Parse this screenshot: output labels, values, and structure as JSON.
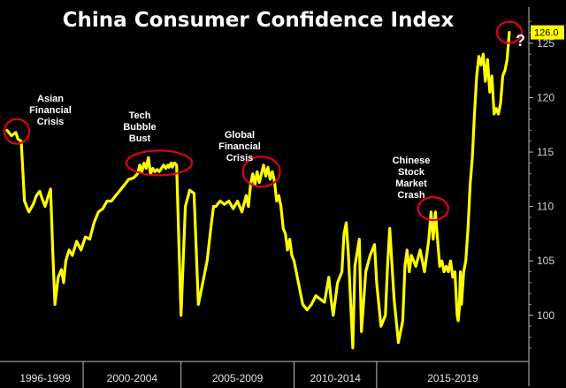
{
  "chart_data": {
    "type": "line",
    "title": "China Consumer Confidence Index",
    "xlabel": "",
    "ylabel": "",
    "ylim": [
      96,
      128
    ],
    "y_ticks": [
      100,
      105,
      110,
      115,
      120,
      125
    ],
    "x_range": [
      1996.0,
      2020.0
    ],
    "x_period_labels": [
      "1996-1999",
      "2000-2004",
      "2005-2009",
      "2010-2014",
      "2015-2019"
    ],
    "period_bounds": [
      1996.0,
      1999.5,
      2004.0,
      2009.2,
      2013.0,
      2020.0
    ],
    "last_value_label": "126.0",
    "question_mark": "?",
    "series": [
      {
        "name": "China Consumer Confidence Index",
        "color": "#ffff00",
        "x": [
          1996.0,
          1996.2,
          1996.4,
          1996.5,
          1996.65,
          1996.8,
          1997.0,
          1997.2,
          1997.35,
          1997.5,
          1997.6,
          1997.75,
          1997.9,
          1998.0,
          1998.1,
          1998.2,
          1998.35,
          1998.5,
          1998.6,
          1998.7,
          1998.85,
          1999.0,
          1999.2,
          1999.4,
          1999.6,
          1999.8,
          2000.0,
          2000.2,
          2000.4,
          2000.6,
          2000.8,
          2001.0,
          2001.2,
          2001.4,
          2001.6,
          2001.8,
          2002.0,
          2002.1,
          2002.2,
          2002.3,
          2002.4,
          2002.5,
          2002.6,
          2002.7,
          2002.8,
          2002.9,
          2003.0,
          2003.1,
          2003.2,
          2003.3,
          2003.4,
          2003.45,
          2003.5,
          2003.55,
          2003.6,
          2003.7,
          2003.8,
          2004.0,
          2004.2,
          2004.4,
          2004.6,
          2004.8,
          2005.0,
          2005.2,
          2005.4,
          2005.5,
          2005.6,
          2005.8,
          2006.0,
          2006.2,
          2006.4,
          2006.6,
          2006.8,
          2007.0,
          2007.1,
          2007.2,
          2007.3,
          2007.4,
          2007.5,
          2007.6,
          2007.7,
          2007.8,
          2007.9,
          2008.0,
          2008.1,
          2008.2,
          2008.3,
          2008.4,
          2008.5,
          2008.6,
          2008.7,
          2008.8,
          2008.9,
          2009.0,
          2009.1,
          2009.2,
          2009.4,
          2009.6,
          2009.8,
          2010.0,
          2010.2,
          2010.4,
          2010.6,
          2010.8,
          2010.9,
          2011.0,
          2011.2,
          2011.4,
          2011.5,
          2011.6,
          2011.7,
          2011.9,
          2012.0,
          2012.2,
          2012.3,
          2012.5,
          2012.7,
          2012.9,
          2013.0,
          2013.2,
          2013.4,
          2013.5,
          2013.6,
          2013.8,
          2014.0,
          2014.2,
          2014.3,
          2014.4,
          2014.5,
          2014.6,
          2014.8,
          2015.0,
          2015.2,
          2015.4,
          2015.5,
          2015.6,
          2015.7,
          2015.8,
          2015.9,
          2016.0,
          2016.1,
          2016.2,
          2016.3,
          2016.4,
          2016.5,
          2016.6,
          2016.7,
          2016.75,
          2016.8,
          2016.85,
          2016.9,
          2017.0,
          2017.1,
          2017.2,
          2017.3,
          2017.4,
          2017.5,
          2017.6,
          2017.7,
          2017.8,
          2017.9,
          2018.0,
          2018.1,
          2018.2,
          2018.3,
          2018.4,
          2018.5,
          2018.6,
          2018.7,
          2018.8,
          2018.9,
          2019.0,
          2019.1
        ],
        "values": [
          117.0,
          116.5,
          116.8,
          116.2,
          116.0,
          110.5,
          109.5,
          110.2,
          111.0,
          111.4,
          110.8,
          110.0,
          111.0,
          111.6,
          106.0,
          101.0,
          103.5,
          104.2,
          103.0,
          105.0,
          106.0,
          105.5,
          106.8,
          106.0,
          107.2,
          107.0,
          108.5,
          109.5,
          109.8,
          110.5,
          110.5,
          111.0,
          111.5,
          112.0,
          112.5,
          112.6,
          113.0,
          113.8,
          113.2,
          114.0,
          113.5,
          114.5,
          113.0,
          113.5,
          113.2,
          113.4,
          113.2,
          113.5,
          113.8,
          113.5,
          113.8,
          113.6,
          113.8,
          114.0,
          113.6,
          114.0,
          113.8,
          100.0,
          110.0,
          111.5,
          111.2,
          101.0,
          103.0,
          105.0,
          108.5,
          110.0,
          110.0,
          110.5,
          110.2,
          110.5,
          109.8,
          110.5,
          109.5,
          111.0,
          110.0,
          112.0,
          113.0,
          112.0,
          113.2,
          112.2,
          113.0,
          113.8,
          112.8,
          113.6,
          112.5,
          113.2,
          112.3,
          110.5,
          111.0,
          110.0,
          108.0,
          107.5,
          106.0,
          107.0,
          105.5,
          105.0,
          103.0,
          101.0,
          100.5,
          101.0,
          101.8,
          101.5,
          101.2,
          103.5,
          101.5,
          100.0,
          103.0,
          104.0,
          107.5,
          108.5,
          105.5,
          97.0,
          104.5,
          107.0,
          98.5,
          104.0,
          105.5,
          106.5,
          103.0,
          99.0,
          100.0,
          104.5,
          108.0,
          101.5,
          97.5,
          99.5,
          104.5,
          106.0,
          104.0,
          105.5,
          104.5,
          106.0,
          104.0,
          107.0,
          109.5,
          107.0,
          109.5,
          107.0,
          104.5,
          105.0,
          104.0,
          104.5,
          104.0,
          105.0,
          103.5,
          104.0,
          100.0,
          99.5,
          100.5,
          104.0,
          101.0,
          104.0,
          105.0,
          108.0,
          112.0,
          114.5,
          118.5,
          122.0,
          123.8,
          123.0,
          124.0,
          121.5,
          123.5,
          120.5,
          122.0,
          118.5,
          119.0,
          118.5,
          119.5,
          122.0,
          122.5,
          123.5,
          126.0
        ]
      }
    ],
    "annotations": [
      {
        "name": "asian-financial-crisis",
        "lines": [
          "Asian",
          "Financial",
          "Crisis"
        ],
        "x": 1996.45,
        "y": 116.9
      },
      {
        "name": "tech-bubble-bust",
        "lines": [
          "Tech",
          "Bubble",
          "Bust"
        ],
        "x": 2003.0,
        "y": 114.0
      },
      {
        "name": "global-financial-crisis",
        "lines": [
          "Global",
          "Financial",
          "Crisis"
        ],
        "x": 2007.7,
        "y": 113.2
      },
      {
        "name": "chinese-stock-market-crash",
        "lines": [
          "Chinese",
          "Stock",
          "Market",
          "Crash"
        ],
        "x": 2015.6,
        "y": 109.8
      },
      {
        "name": "latest-value",
        "lines": [],
        "x": 2019.1,
        "y": 126.0
      }
    ],
    "grid": false,
    "background": "#000000",
    "line_color": "#ffff00",
    "circle_color": "#e0001a"
  }
}
